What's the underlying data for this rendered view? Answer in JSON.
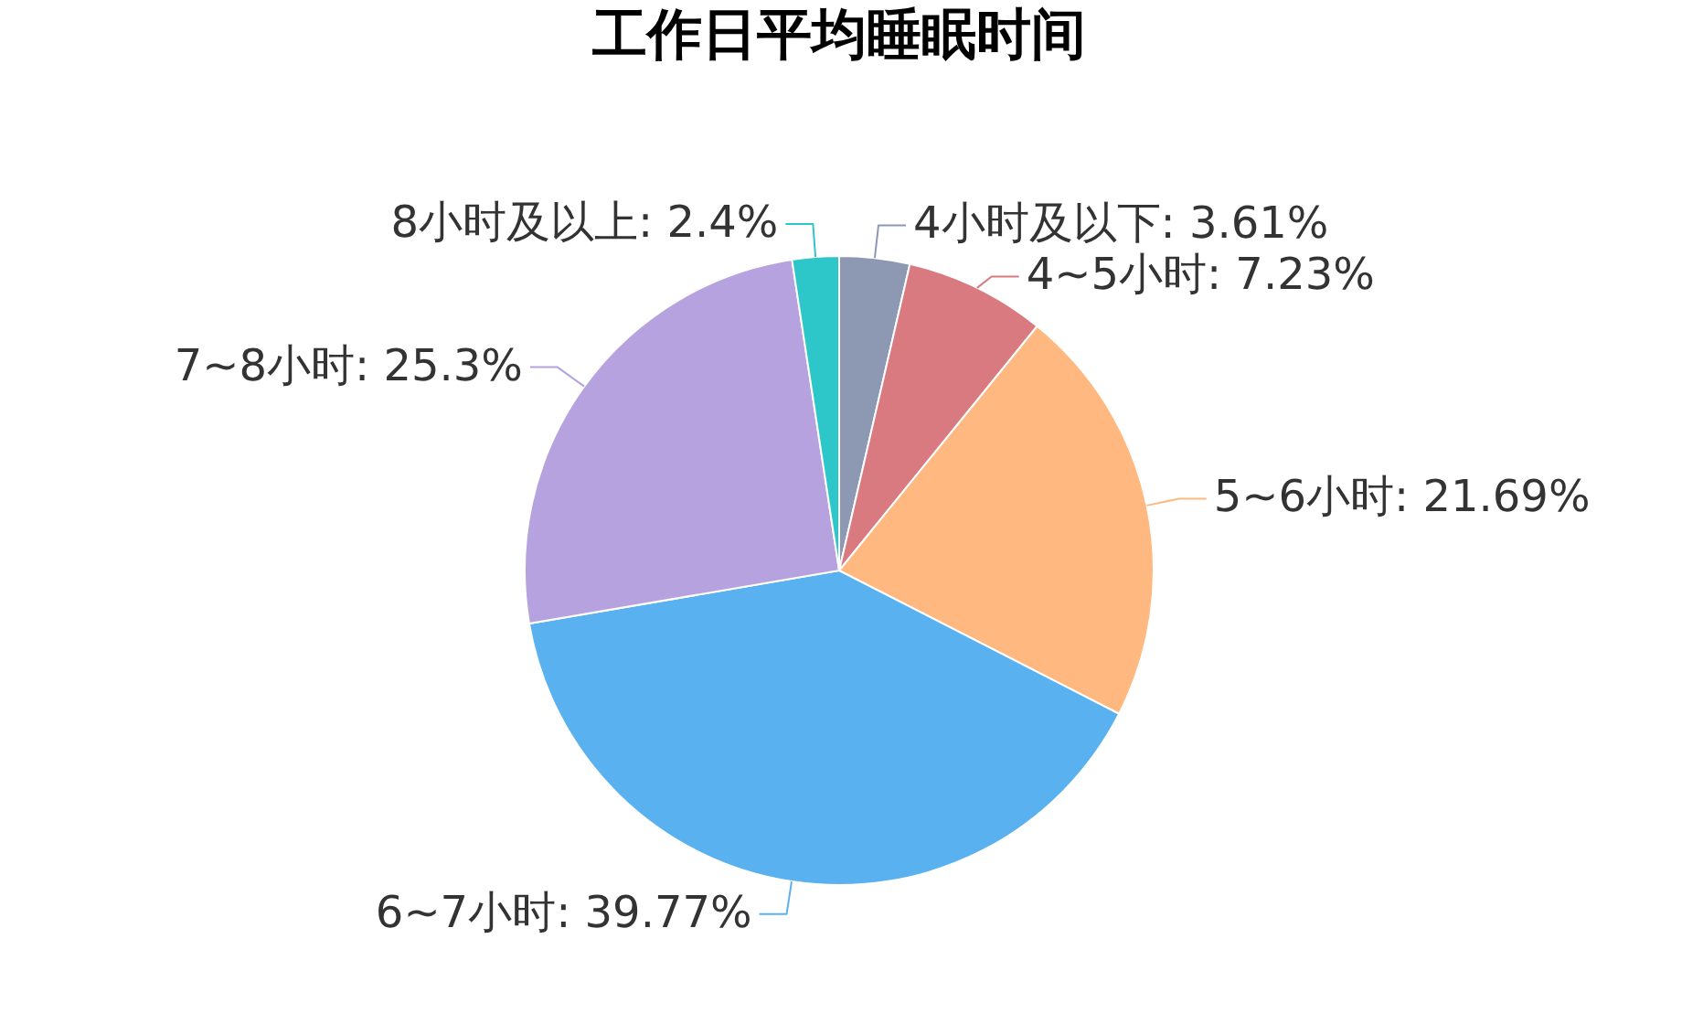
{
  "chart_data": {
    "type": "pie",
    "title": "工作日平均睡眠时间",
    "categories": [
      "4小时及以下",
      "4~5小时",
      "5~6小时",
      "6~7小时",
      "7~8小时",
      "8小时及以上"
    ],
    "values": [
      3.61,
      7.23,
      21.69,
      39.77,
      25.3,
      2.4
    ],
    "colors": [
      "#8d98b3",
      "#d87a80",
      "#ffb980",
      "#5ab1ef",
      "#b6a2de",
      "#2ec7c9"
    ],
    "value_labels": [
      ": 3.61%",
      ": 7.23%",
      ": 21.69%",
      ": 39.77%",
      ": 25.3%",
      ": 2.4%"
    ]
  }
}
